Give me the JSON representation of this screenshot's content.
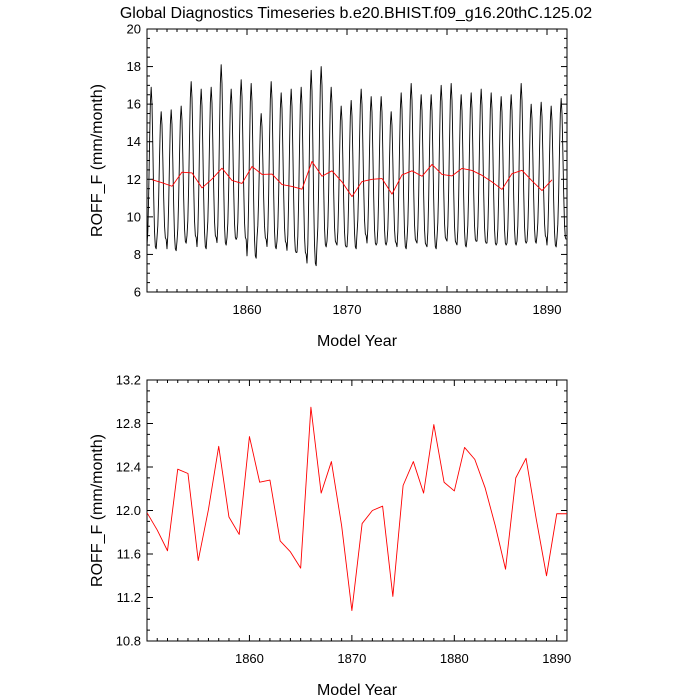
{
  "page": {
    "title": "Global Diagnostics Timeseries b.e20.BHIST.f09_g16.20thC.125.02"
  },
  "chart_data": [
    {
      "type": "line",
      "title": "Global Diagnostics Timeseries b.e20.BHIST.f09_g16.20thC.125.02",
      "xlabel": "Model Year",
      "ylabel": "ROFF_F (mm/month)",
      "xlim": [
        1850,
        1892
      ],
      "ylim": [
        6,
        20
      ],
      "xticks": [
        1860,
        1870,
        1880,
        1890
      ],
      "yticks": [
        6,
        8,
        10,
        12,
        14,
        16,
        18,
        20
      ],
      "grid": false,
      "series": [
        {
          "color": "#000000",
          "monthly": true,
          "annual_peaks": [
            16.9,
            15.6,
            15.7,
            15.9,
            17.2,
            16.8,
            16.9,
            18.1,
            16.8,
            17.3,
            17.1,
            15.5,
            17.2,
            16.6,
            16.8,
            16.9,
            17.8,
            18.0,
            16.9,
            15.9,
            16.2,
            16.8,
            16.4,
            16.4,
            15.6,
            16.6,
            17.1,
            16.5,
            16.5,
            17.0,
            17.1,
            16.5,
            16.6,
            16.8,
            16.6,
            16.4,
            16.5,
            17.1,
            16.0,
            16.1,
            15.9,
            16.3
          ],
          "annual_troughs": [
            8.3,
            8.8,
            8.2,
            8.6,
            8.9,
            8.3,
            8.9,
            8.5,
            8.8,
            8.8,
            7.8,
            8.8,
            8.3,
            8.6,
            8.1,
            8.0,
            7.4,
            8.4,
            8.6,
            8.4,
            8.3,
            9.0,
            8.5,
            8.5,
            8.6,
            8.3,
            8.7,
            8.5,
            8.3,
            8.8,
            8.6,
            8.4,
            8.7,
            8.6,
            8.5,
            8.5,
            8.5,
            8.6,
            8.6,
            8.9,
            8.4,
            8.8
          ]
        },
        {
          "color": "#ff0000",
          "x": [
            1850.5,
            1851.5,
            1852.5,
            1853.5,
            1854.5,
            1855.5,
            1856.5,
            1857.5,
            1858.5,
            1859.5,
            1860.5,
            1861.5,
            1862.5,
            1863.5,
            1864.5,
            1865.5,
            1866.5,
            1867.5,
            1868.5,
            1869.5,
            1870.5,
            1871.5,
            1872.5,
            1873.5,
            1874.5,
            1875.5,
            1876.5,
            1877.5,
            1878.5,
            1879.5,
            1880.5,
            1881.5,
            1882.5,
            1883.5,
            1884.5,
            1885.5,
            1886.5,
            1887.5,
            1888.5,
            1889.5,
            1890.5
          ],
          "y": [
            11.98,
            11.82,
            11.63,
            12.38,
            12.34,
            11.54,
            12.01,
            12.59,
            11.94,
            11.78,
            12.68,
            12.26,
            12.28,
            11.72,
            11.62,
            11.47,
            12.95,
            12.16,
            12.45,
            11.86,
            11.08,
            11.88,
            12.0,
            12.04,
            11.21,
            12.23,
            12.45,
            12.16,
            12.79,
            12.26,
            12.18,
            12.58,
            12.47,
            12.21,
            11.86,
            11.46,
            12.3,
            12.48,
            11.92,
            11.4,
            11.97
          ]
        }
      ]
    },
    {
      "type": "line",
      "xlabel": "Model Year",
      "ylabel": "ROFF_F (mm/month)",
      "xlim": [
        1850,
        1891
      ],
      "ylim": [
        10.8,
        13.2
      ],
      "xticks": [
        1860,
        1870,
        1880,
        1890
      ],
      "yticks": [
        10.8,
        11.2,
        11.6,
        12.0,
        12.4,
        12.8,
        13.2
      ],
      "grid": false,
      "series": [
        {
          "color": "#ff0000",
          "x": [
            1850.0,
            1851.0,
            1852.0,
            1853.0,
            1854.0,
            1855.0,
            1856.0,
            1857.0,
            1858.0,
            1859.0,
            1860.0,
            1861.0,
            1862.0,
            1863.0,
            1864.0,
            1865.0,
            1866.0,
            1867.0,
            1868.0,
            1869.0,
            1870.0,
            1871.0,
            1872.0,
            1873.0,
            1874.0,
            1875.0,
            1876.0,
            1877.0,
            1878.0,
            1879.0,
            1880.0,
            1881.0,
            1882.0,
            1883.0,
            1884.0,
            1885.0,
            1886.0,
            1887.0,
            1888.0,
            1889.0,
            1890.0,
            1891.0
          ],
          "y": [
            11.98,
            11.82,
            11.63,
            12.38,
            12.34,
            11.54,
            12.01,
            12.59,
            11.94,
            11.78,
            12.68,
            12.26,
            12.28,
            11.72,
            11.62,
            11.47,
            12.95,
            12.16,
            12.45,
            11.86,
            11.08,
            11.88,
            12.0,
            12.04,
            11.21,
            12.23,
            12.45,
            12.16,
            12.79,
            12.26,
            12.18,
            12.58,
            12.47,
            12.21,
            11.86,
            11.46,
            12.3,
            12.48,
            11.92,
            11.4,
            11.97,
            11.97
          ]
        }
      ]
    }
  ]
}
